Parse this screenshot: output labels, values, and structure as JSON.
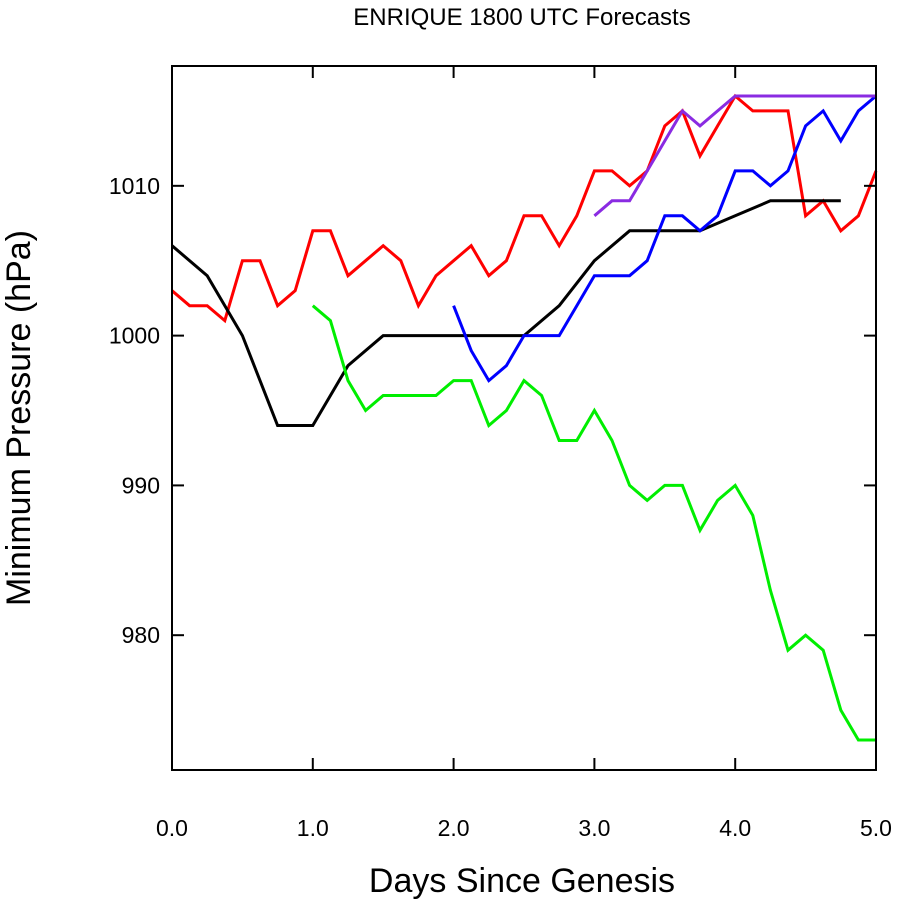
{
  "chart_data": {
    "type": "line",
    "title": "ENRIQUE 1800 UTC Forecasts",
    "xlabel": "Days Since Genesis",
    "ylabel": "Minimum Pressure (hPa)",
    "xlim": [
      0,
      5
    ],
    "ylim": [
      971,
      1018
    ],
    "xticks": [
      0,
      1,
      2,
      3,
      4,
      5
    ],
    "xtick_labels": [
      "0.0",
      "1.0",
      "2.0",
      "3.0",
      "4.0",
      "5.0"
    ],
    "yticks": [
      980,
      990,
      1000,
      1010
    ],
    "ytick_labels": [
      "980",
      "990",
      "1000",
      "1010"
    ],
    "grid": false,
    "series": [
      {
        "color": "#ff0000",
        "points": [
          [
            0,
            1003
          ],
          [
            0.125,
            1002
          ],
          [
            0.25,
            1002
          ],
          [
            0.375,
            1001
          ],
          [
            0.5,
            1005
          ],
          [
            0.625,
            1005
          ],
          [
            0.75,
            1002
          ],
          [
            0.875,
            1003
          ],
          [
            1.0,
            1007
          ],
          [
            1.125,
            1007
          ],
          [
            1.25,
            1004
          ],
          [
            1.375,
            1005
          ],
          [
            1.5,
            1006
          ],
          [
            1.625,
            1005
          ],
          [
            1.75,
            1002
          ],
          [
            1.875,
            1004
          ],
          [
            2.0,
            1005
          ],
          [
            2.125,
            1006
          ],
          [
            2.25,
            1004
          ],
          [
            2.375,
            1005
          ],
          [
            2.5,
            1008
          ],
          [
            2.625,
            1008
          ],
          [
            2.75,
            1006
          ],
          [
            2.875,
            1008
          ],
          [
            3.0,
            1011
          ],
          [
            3.125,
            1011
          ],
          [
            3.25,
            1010
          ],
          [
            3.375,
            1011
          ],
          [
            3.5,
            1014
          ],
          [
            3.625,
            1015
          ],
          [
            3.75,
            1012
          ],
          [
            3.875,
            1014
          ],
          [
            4.0,
            1016
          ],
          [
            4.125,
            1015
          ],
          [
            4.25,
            1015
          ],
          [
            4.375,
            1015
          ],
          [
            4.5,
            1008
          ],
          [
            4.625,
            1009
          ],
          [
            4.75,
            1007
          ],
          [
            4.875,
            1008
          ],
          [
            5.0,
            1011
          ]
        ]
      },
      {
        "color": "#000000",
        "points": [
          [
            0,
            1006
          ],
          [
            0.25,
            1004
          ],
          [
            0.5,
            1000
          ],
          [
            0.75,
            994
          ],
          [
            1.0,
            994
          ],
          [
            1.25,
            998
          ],
          [
            1.5,
            1000
          ],
          [
            1.75,
            1000
          ],
          [
            2.0,
            1000
          ],
          [
            2.25,
            1000
          ],
          [
            2.5,
            1000
          ],
          [
            2.75,
            1002
          ],
          [
            3.0,
            1005
          ],
          [
            3.25,
            1007
          ],
          [
            3.5,
            1007
          ],
          [
            3.75,
            1007
          ],
          [
            4.0,
            1008
          ],
          [
            4.25,
            1009
          ],
          [
            4.5,
            1009
          ],
          [
            4.75,
            1009
          ]
        ]
      },
      {
        "color": "#00ee00",
        "points": [
          [
            1.0,
            1002
          ],
          [
            1.125,
            1001
          ],
          [
            1.25,
            997
          ],
          [
            1.375,
            995
          ],
          [
            1.5,
            996
          ],
          [
            1.625,
            996
          ],
          [
            1.75,
            996
          ],
          [
            1.875,
            996
          ],
          [
            2.0,
            997
          ],
          [
            2.125,
            997
          ],
          [
            2.25,
            994
          ],
          [
            2.375,
            995
          ],
          [
            2.5,
            997
          ],
          [
            2.625,
            996
          ],
          [
            2.75,
            993
          ],
          [
            2.875,
            993
          ],
          [
            3.0,
            995
          ],
          [
            3.125,
            993
          ],
          [
            3.25,
            990
          ],
          [
            3.375,
            989
          ],
          [
            3.5,
            990
          ],
          [
            3.625,
            990
          ],
          [
            3.75,
            987
          ],
          [
            3.875,
            989
          ],
          [
            4.0,
            990
          ],
          [
            4.125,
            988
          ],
          [
            4.25,
            983
          ],
          [
            4.375,
            979
          ],
          [
            4.5,
            980
          ],
          [
            4.625,
            979
          ],
          [
            4.75,
            975
          ],
          [
            4.875,
            973
          ],
          [
            5.0,
            973
          ]
        ]
      },
      {
        "color": "#0000ff",
        "points": [
          [
            2.0,
            1002
          ],
          [
            2.125,
            999
          ],
          [
            2.25,
            997
          ],
          [
            2.375,
            998
          ],
          [
            2.5,
            1000
          ],
          [
            2.625,
            1000
          ],
          [
            2.75,
            1000
          ],
          [
            2.875,
            1002
          ],
          [
            3.0,
            1004
          ],
          [
            3.125,
            1004
          ],
          [
            3.25,
            1004
          ],
          [
            3.375,
            1005
          ],
          [
            3.5,
            1008
          ],
          [
            3.625,
            1008
          ],
          [
            3.75,
            1007
          ],
          [
            3.875,
            1008
          ],
          [
            4.0,
            1011
          ],
          [
            4.125,
            1011
          ],
          [
            4.25,
            1010
          ],
          [
            4.375,
            1011
          ],
          [
            4.5,
            1014
          ],
          [
            4.625,
            1015
          ],
          [
            4.75,
            1013
          ],
          [
            4.875,
            1015
          ],
          [
            5.0,
            1016
          ]
        ]
      },
      {
        "color": "#8a2be2",
        "points": [
          [
            3.0,
            1008
          ],
          [
            3.125,
            1009
          ],
          [
            3.25,
            1009
          ],
          [
            3.375,
            1011
          ],
          [
            3.5,
            1013
          ],
          [
            3.625,
            1015
          ],
          [
            3.75,
            1014
          ],
          [
            3.875,
            1015
          ],
          [
            4.0,
            1016
          ],
          [
            4.25,
            1016
          ],
          [
            4.5,
            1016
          ],
          [
            4.75,
            1016
          ],
          [
            5.0,
            1016
          ]
        ]
      }
    ]
  }
}
